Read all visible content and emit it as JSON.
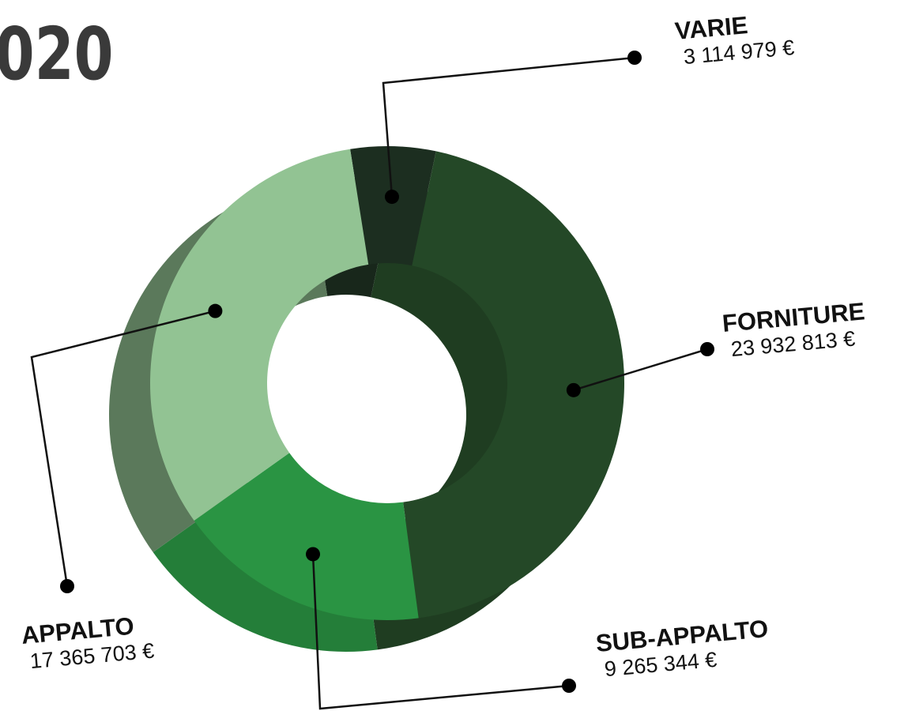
{
  "chart_data": {
    "type": "pie",
    "title": "020",
    "categories": [
      "VARIE",
      "FORNITURE",
      "SUB-APPALTO",
      "APPALTO"
    ],
    "values": [
      3114979,
      23932813,
      9265344,
      17365703
    ],
    "value_labels": [
      "3 114 979 €",
      "23 932 813 €",
      "9 265 344 €",
      "17 365 703 €"
    ],
    "colors": [
      "#1c2e20",
      "#244827",
      "#2a9443",
      "#92c393"
    ]
  }
}
